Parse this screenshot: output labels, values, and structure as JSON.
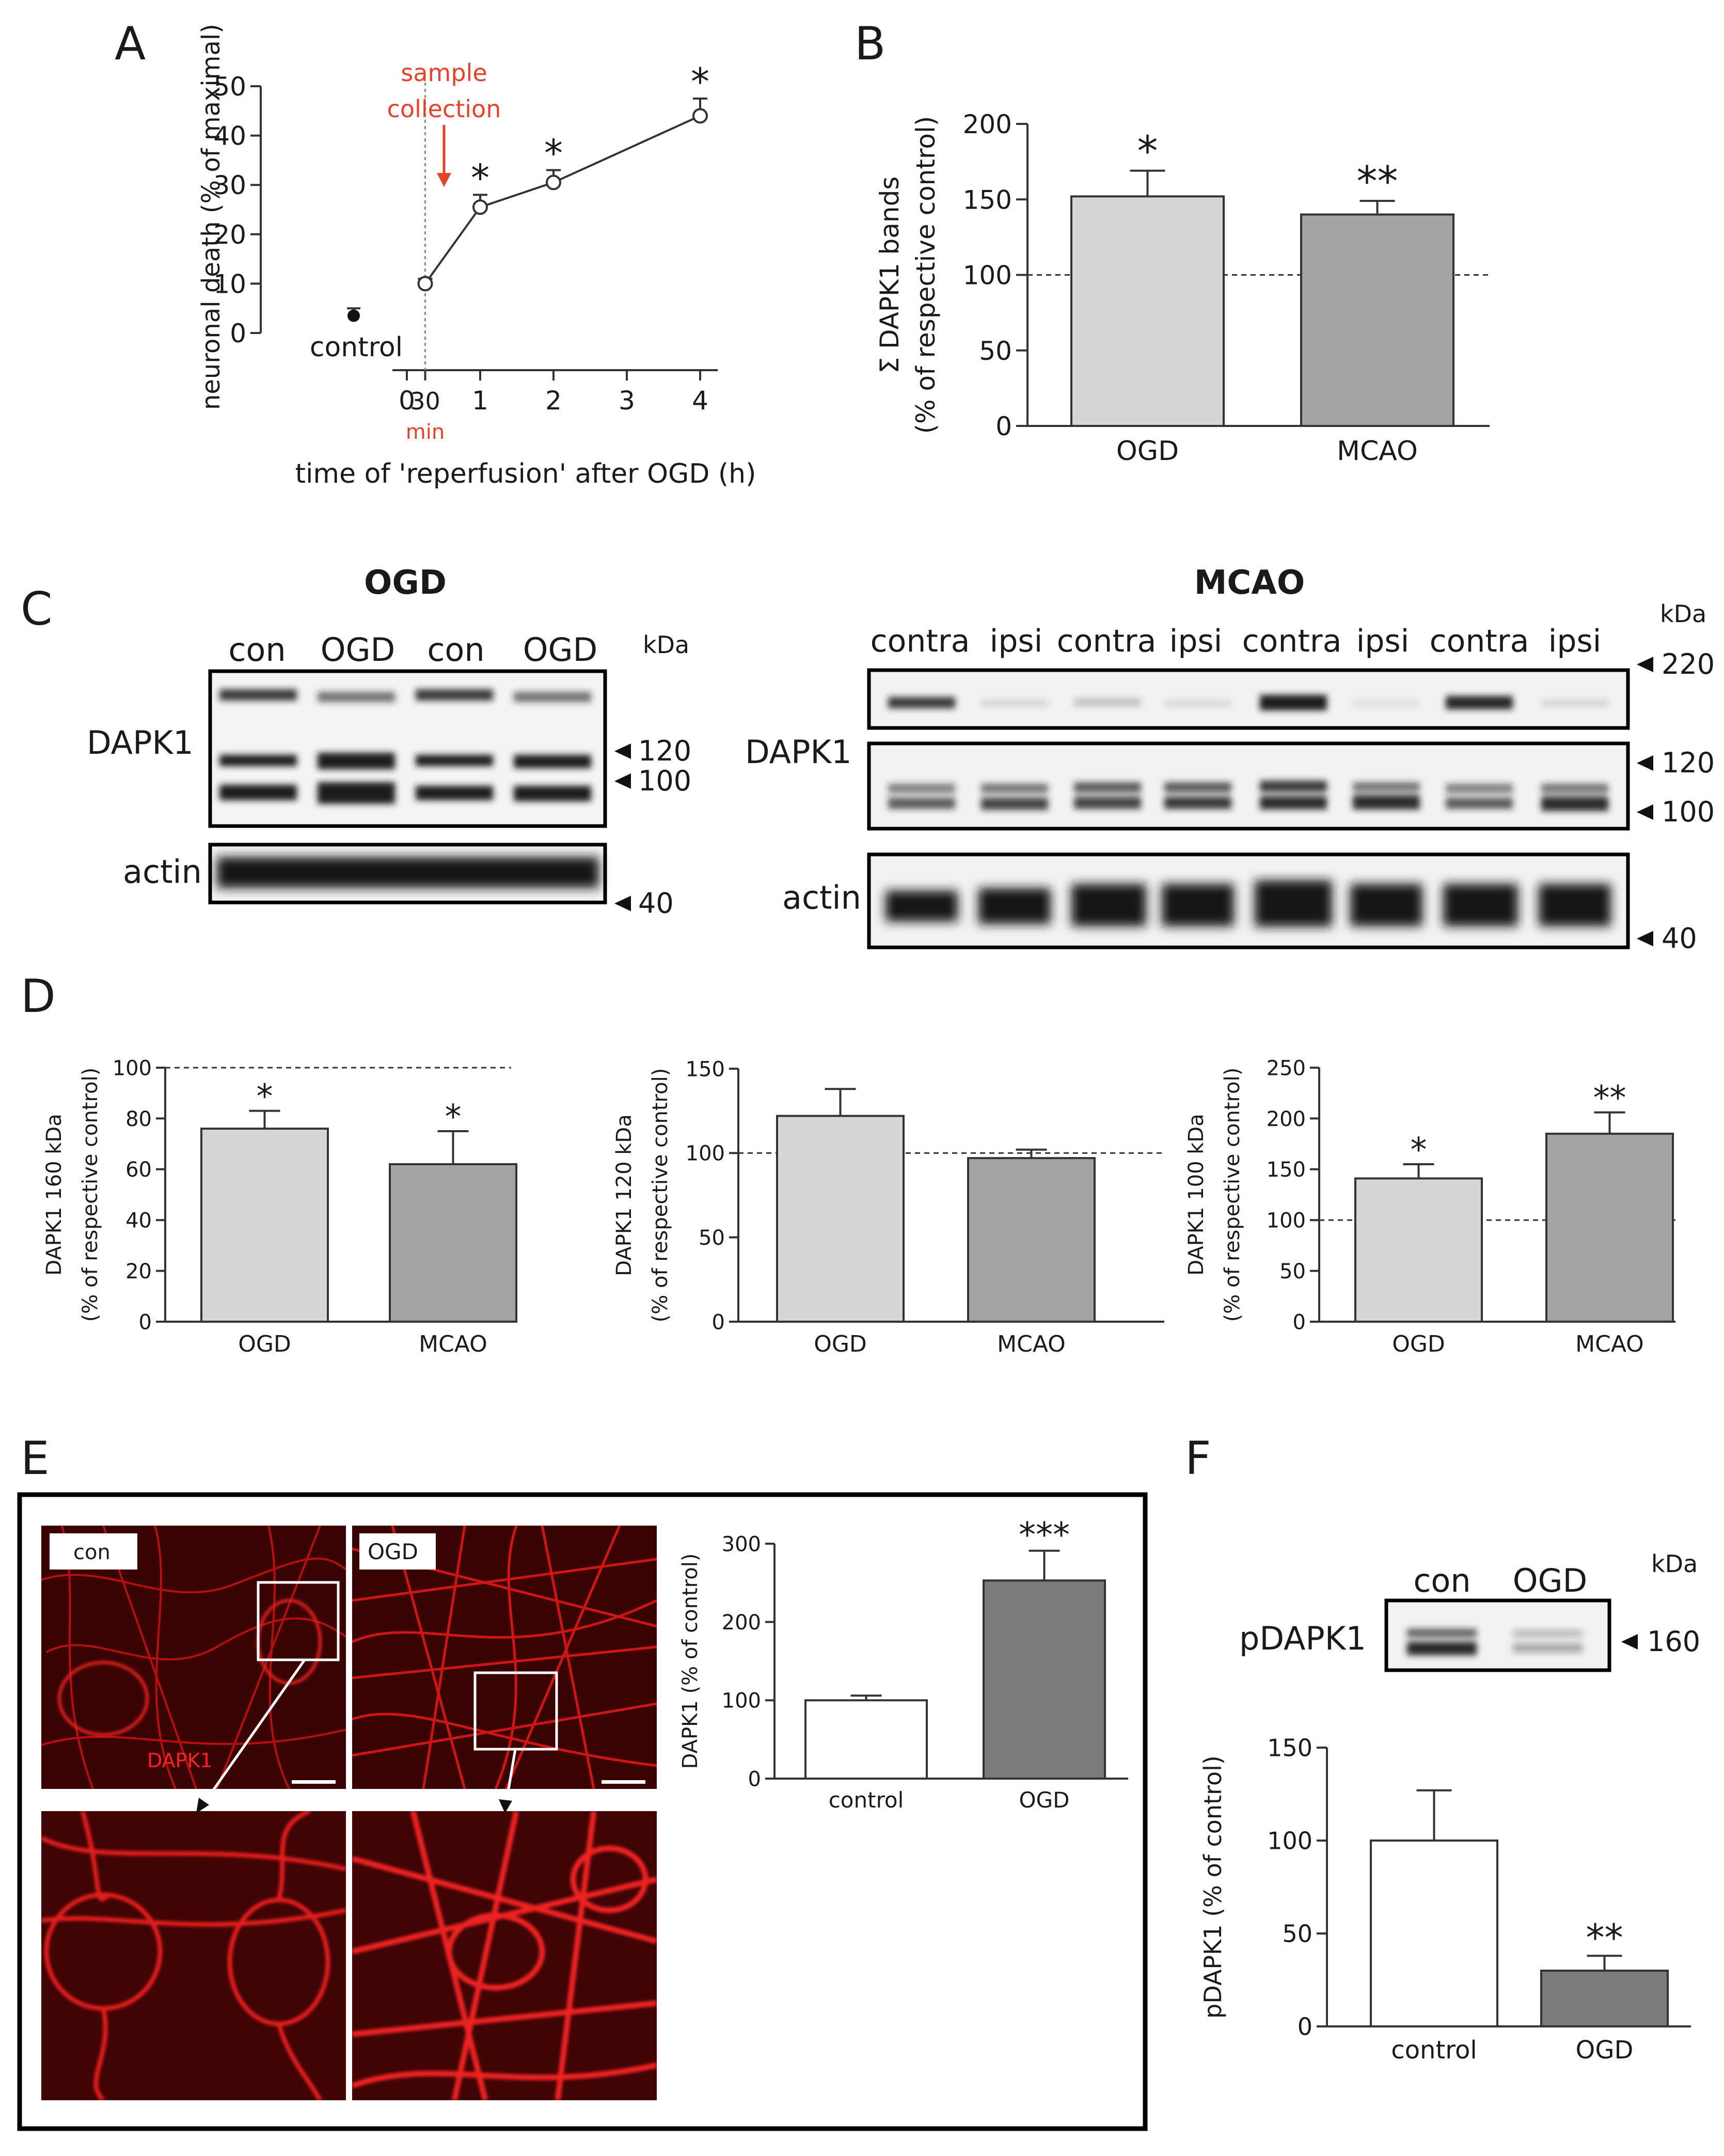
{
  "panels": {
    "A": "A",
    "B": "B",
    "C": "C",
    "D": "D",
    "E": "E",
    "F": "F"
  },
  "chart_data": [
    {
      "id": "A",
      "type": "line",
      "ylabel": "neuronal death (% of maximal)",
      "xlabel": "time of 'reperfusion' after OGD (h)",
      "ylim": [
        0,
        50
      ],
      "yticks": [
        "0",
        "10",
        "20",
        "30",
        "40",
        "50"
      ],
      "xticks": [
        "0",
        "30",
        "1",
        "2",
        "3",
        "4"
      ],
      "xtick_sub": "min",
      "x": [
        0.25,
        1,
        2,
        4
      ],
      "values": [
        10,
        25.5,
        30.5,
        44
      ],
      "errors": [
        1,
        2.5,
        2.5,
        3.5
      ],
      "stars": [
        "",
        "*",
        "*",
        "*"
      ],
      "control_label": "control",
      "control_value": 3.5,
      "control_error": 1.5,
      "annotation": "sample\ncollection",
      "annotation_line1": "sample",
      "annotation_line2": "collection",
      "annotation_color": "#e8412a"
    },
    {
      "id": "B",
      "type": "bar",
      "ylabel_line1": "Σ DAPK1 bands",
      "ylabel_line2": "(% of respective control)",
      "categories": [
        "OGD",
        "MCAO"
      ],
      "values": [
        152,
        140
      ],
      "errors": [
        17,
        9
      ],
      "stars": [
        "*",
        "**"
      ],
      "ylim": [
        0,
        200
      ],
      "yticks": [
        "0",
        "50",
        "100",
        "150",
        "200"
      ],
      "reference": 100,
      "colors": [
        "#d6d6d6",
        "#a4a4a4"
      ]
    },
    {
      "id": "D1",
      "type": "bar",
      "ylabel_line1": "DAPK1 160 kDa",
      "ylabel_line2": "(% of respective control)",
      "categories": [
        "OGD",
        "MCAO"
      ],
      "values": [
        76,
        62
      ],
      "errors": [
        7,
        13
      ],
      "stars": [
        "*",
        "*"
      ],
      "ylim": [
        0,
        100
      ],
      "yticks": [
        "0",
        "20",
        "40",
        "60",
        "80",
        "100"
      ],
      "reference": 100,
      "colors": [
        "#d6d6d6",
        "#a4a4a4"
      ]
    },
    {
      "id": "D2",
      "type": "bar",
      "ylabel_line1": "DAPK1 120 kDa",
      "ylabel_line2": "(% of respective control)",
      "categories": [
        "OGD",
        "MCAO"
      ],
      "values": [
        122,
        97
      ],
      "errors": [
        16,
        5
      ],
      "stars": [
        "",
        ""
      ],
      "ylim": [
        0,
        150
      ],
      "yticks": [
        "0",
        "50",
        "100",
        "150"
      ],
      "reference": 100,
      "colors": [
        "#d6d6d6",
        "#a4a4a4"
      ]
    },
    {
      "id": "D3",
      "type": "bar",
      "ylabel_line1": "DAPK1 100 kDa",
      "ylabel_line2": "(% of respective control)",
      "categories": [
        "OGD",
        "MCAO"
      ],
      "values": [
        141,
        185
      ],
      "errors": [
        14,
        21
      ],
      "stars": [
        "*",
        "**"
      ],
      "ylim": [
        0,
        250
      ],
      "yticks": [
        "0",
        "50",
        "100",
        "150",
        "200",
        "250"
      ],
      "reference": 100,
      "colors": [
        "#d6d6d6",
        "#a4a4a4"
      ]
    },
    {
      "id": "E",
      "type": "bar",
      "ylabel_line1": "DAPK1 (% of control)",
      "ylabel_line2": "",
      "categories": [
        "control",
        "OGD"
      ],
      "values": [
        100,
        253
      ],
      "errors": [
        6,
        38
      ],
      "stars": [
        "",
        "***"
      ],
      "ylim": [
        0,
        300
      ],
      "yticks": [
        "0",
        "100",
        "200",
        "300"
      ],
      "colors": [
        "#ffffff",
        "#7a7a7a"
      ]
    },
    {
      "id": "F",
      "type": "bar",
      "ylabel_line1": "pDAPK1 (% of control)",
      "ylabel_line2": "",
      "categories": [
        "control",
        "OGD"
      ],
      "values": [
        100,
        30
      ],
      "errors": [
        27,
        8
      ],
      "stars": [
        "",
        "**"
      ],
      "ylim": [
        0,
        150
      ],
      "yticks": [
        "0",
        "50",
        "100",
        "150"
      ],
      "colors": [
        "#ffffff",
        "#7a7a7a"
      ]
    }
  ],
  "blots": {
    "ogd": {
      "title": "OGD",
      "lanes": [
        "con",
        "OGD",
        "con",
        "OGD"
      ],
      "kda": "kDa",
      "dapk_label": "DAPK1",
      "actin_label": "actin",
      "markers": [
        "120",
        "100",
        "40"
      ]
    },
    "mcao": {
      "title": "MCAO",
      "lanes": [
        "contra",
        "ipsi",
        "contra",
        "ipsi",
        "contra",
        "ipsi",
        "contra",
        "ipsi"
      ],
      "kda": "kDa",
      "dapk_label": "DAPK1",
      "actin_label": "actin",
      "markers": [
        "220",
        "120",
        "100",
        "40"
      ]
    },
    "pdapk": {
      "lanes": [
        "con",
        "OGD"
      ],
      "kda": "kDa",
      "label": "pDAPK1",
      "marker": "160"
    }
  },
  "images": {
    "con_label": "con",
    "ogd_label": "OGD",
    "stain_label": "DAPK1",
    "stain_color": "#e41a1c"
  }
}
